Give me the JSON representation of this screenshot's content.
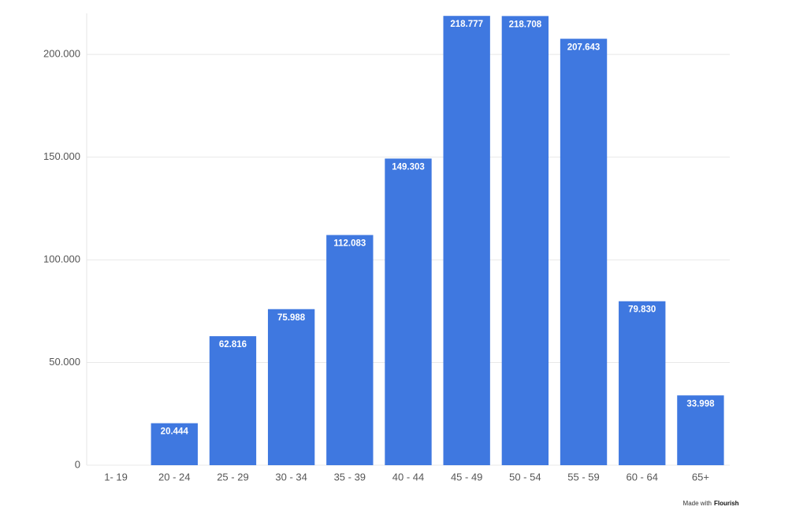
{
  "chart_data": {
    "type": "bar",
    "categories": [
      "1- 19",
      "20 - 24",
      "25 - 29",
      "30 - 34",
      "35 - 39",
      "40 - 44",
      "45 - 49",
      "50 - 54",
      "55 - 59",
      "60 - 64",
      "65+"
    ],
    "values": [
      null,
      20444,
      62816,
      75988,
      112083,
      149303,
      218777,
      218708,
      207643,
      79830,
      33998
    ],
    "value_labels": [
      null,
      "20.444",
      "62.816",
      "75.988",
      "112.083",
      "149.303",
      "218.777",
      "218.708",
      "207.643",
      "79.830",
      "33.998"
    ],
    "color": "#3f78e0",
    "ylim": [
      0,
      220000
    ],
    "yticks": [
      0,
      {
        "value": 50000,
        "label": "50.000"
      },
      {
        "value": 100000,
        "label": "100.000"
      },
      {
        "value": 150000,
        "label": "150.000"
      },
      {
        "value": 200000,
        "label": "200.000"
      }
    ],
    "grid": true
  },
  "footer": {
    "credit": "Made with",
    "brand": "Flourish"
  }
}
